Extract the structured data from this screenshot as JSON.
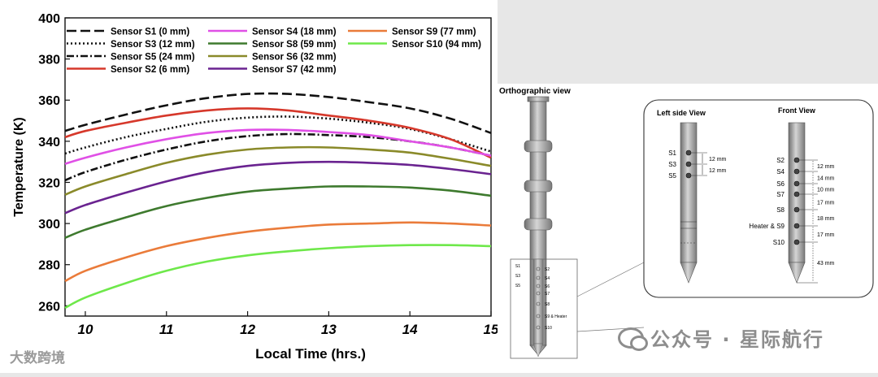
{
  "chart_data": {
    "type": "line",
    "xlabel": "Local Time (hrs.)",
    "ylabel": "Temperature (K)",
    "xlim": [
      9.75,
      15
    ],
    "ylim": [
      255,
      400
    ],
    "xticks": [
      10,
      11,
      12,
      13,
      14,
      15
    ],
    "yticks": [
      260,
      280,
      300,
      320,
      340,
      360,
      380,
      400
    ],
    "grid": false,
    "legend_position": "top",
    "series": [
      {
        "name": "Sensor S1 (0 mm)",
        "color": "#111111",
        "dash": "long-dash",
        "x": [
          9.75,
          10,
          10.5,
          11,
          11.5,
          12,
          12.5,
          13,
          13.5,
          14,
          14.5,
          15
        ],
        "y": [
          345,
          348,
          353,
          357.5,
          361,
          363,
          363,
          361.5,
          359,
          356,
          351,
          344
        ]
      },
      {
        "name": "Sensor S3 (12 mm)",
        "color": "#111111",
        "dash": "dotted",
        "x": [
          9.75,
          10,
          10.5,
          11,
          11.5,
          12,
          12.5,
          13,
          13.5,
          14,
          14.5,
          15
        ],
        "y": [
          334,
          337,
          342,
          346,
          349.5,
          351.5,
          352,
          351,
          349,
          346,
          341,
          335
        ]
      },
      {
        "name": "Sensor S5 (24 mm)",
        "color": "#111111",
        "dash": "dash-dot",
        "x": [
          9.75,
          10,
          10.5,
          11,
          11.5,
          12,
          12.5,
          13,
          13.5,
          14,
          14.5,
          15
        ],
        "y": [
          321,
          325,
          331,
          336,
          340,
          342.5,
          343.5,
          343,
          342,
          340,
          337,
          333
        ]
      },
      {
        "name": "Sensor S2 (6 mm)",
        "color": "#d6382b",
        "dash": "solid",
        "x": [
          9.75,
          10,
          10.5,
          11,
          11.5,
          12,
          12.5,
          13,
          13.5,
          14,
          14.5,
          15
        ],
        "y": [
          342,
          345,
          349,
          352.5,
          355,
          356,
          355,
          352.5,
          350,
          346.5,
          341,
          332
        ]
      },
      {
        "name": "Sensor S4 (18 mm)",
        "color": "#e050e6",
        "dash": "solid",
        "x": [
          9.75,
          10,
          10.5,
          11,
          11.5,
          12,
          12.5,
          13,
          13.5,
          14,
          14.5,
          15
        ],
        "y": [
          329,
          332,
          337,
          341,
          344,
          345.5,
          345.5,
          344.5,
          343,
          340,
          337,
          333
        ]
      },
      {
        "name": "Sensor S6 (32 mm)",
        "color": "#8a8a2a",
        "dash": "solid",
        "x": [
          9.75,
          10,
          10.5,
          11,
          11.5,
          12,
          12.5,
          13,
          13.5,
          14,
          14.5,
          15
        ],
        "y": [
          314,
          318,
          324,
          329.5,
          333.5,
          336,
          337,
          337,
          336,
          334.5,
          331.5,
          328
        ]
      },
      {
        "name": "Sensor S7 (42 mm)",
        "color": "#6a2390",
        "dash": "solid",
        "x": [
          9.75,
          10,
          10.5,
          11,
          11.5,
          12,
          12.5,
          13,
          13.5,
          14,
          14.5,
          15
        ],
        "y": [
          305,
          309,
          315,
          320.5,
          325,
          328,
          329.5,
          330,
          329.5,
          328.5,
          326.5,
          324
        ]
      },
      {
        "name": "Sensor S8 (59 mm)",
        "color": "#3e7a2e",
        "dash": "solid",
        "x": [
          9.75,
          10,
          10.5,
          11,
          11.5,
          12,
          12.5,
          13,
          13.5,
          14,
          14.5,
          15
        ],
        "y": [
          293,
          297,
          303,
          308.5,
          312.5,
          315.5,
          317,
          318,
          318,
          317.5,
          316,
          313.5
        ]
      },
      {
        "name": "Sensor S9 (77 mm)",
        "color": "#ea7b3a",
        "dash": "solid",
        "x": [
          9.75,
          10,
          10.5,
          11,
          11.5,
          12,
          12.5,
          13,
          13.5,
          14,
          14.5,
          15
        ],
        "y": [
          272,
          277,
          283.5,
          289,
          293,
          296,
          298,
          299.5,
          300,
          300.5,
          300,
          299
        ]
      },
      {
        "name": "Sensor S10 (94 mm)",
        "color": "#6ee84a",
        "dash": "solid",
        "x": [
          9.75,
          10,
          10.5,
          11,
          11.5,
          12,
          12.5,
          13,
          13.5,
          14,
          14.5,
          15
        ],
        "y": [
          259,
          264,
          271,
          277,
          281.5,
          284.5,
          286.5,
          288,
          289,
          289.5,
          289.5,
          289
        ]
      }
    ]
  },
  "diagram": {
    "orthographic_title": "Orthographic view",
    "left_view_title": "Left side View",
    "front_view_title": "Front View",
    "mini_labels": [
      "S1",
      "S3",
      "S5",
      "S2",
      "S4",
      "S6",
      "S7",
      "S8",
      "S9 & Heater",
      "S10"
    ],
    "left_sensors": [
      "S1",
      "S3",
      "S5"
    ],
    "left_spacings": [
      "12 mm",
      "12 mm"
    ],
    "front_sensors": [
      "S2",
      "S4",
      "S6",
      "S7",
      "S8",
      "Heater & S9",
      "S10"
    ],
    "front_spacings": [
      "12 mm",
      "14 mm",
      "10 mm",
      "17 mm",
      "18 mm",
      "17 mm",
      "43 mm"
    ]
  },
  "watermarks": {
    "left": "大数跨境",
    "right": "公众号 · 星际航行"
  }
}
